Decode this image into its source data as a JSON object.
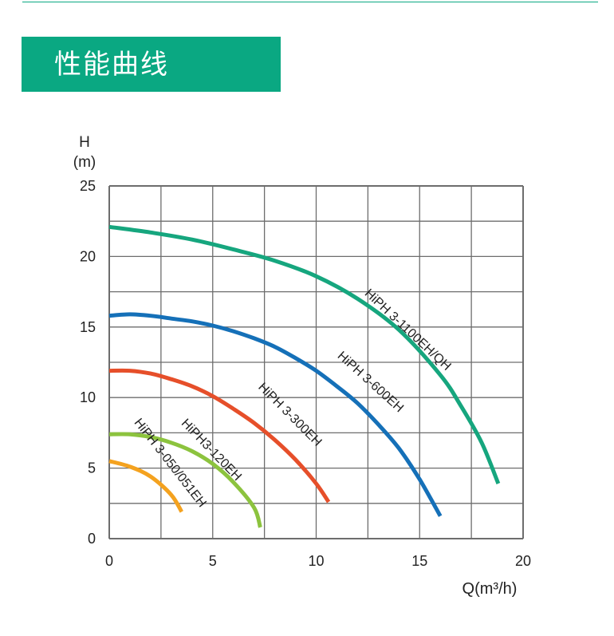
{
  "header": {
    "title": "性能曲线"
  },
  "colors": {
    "brand": "#0aa882",
    "grid": "#6d6d6d",
    "curve_1100": "#16a67e",
    "curve_600": "#1570b8",
    "curve_300": "#e64f2a",
    "curve_120": "#8cc33e",
    "curve_050": "#f4a21f"
  },
  "chart_data": {
    "type": "line",
    "ylabel_line1": "H",
    "ylabel_line2": "(m)",
    "xlabel": "Q(m³/h)",
    "xlim": [
      0,
      20
    ],
    "ylim": [
      0,
      25
    ],
    "grid": true,
    "x_tick_labels": [
      "0",
      "5",
      "10",
      "15",
      "20"
    ],
    "y_tick_labels": [
      "0",
      "5",
      "10",
      "15",
      "20",
      "25"
    ],
    "series": [
      {
        "name": "HiPH 3-1100EH/QH",
        "color": "#16a67e",
        "x": [
          0,
          2,
          4,
          6,
          8,
          10,
          12,
          14,
          16,
          17,
          18,
          18.8
        ],
        "y": [
          22.1,
          21.7,
          21.2,
          20.5,
          19.7,
          18.6,
          17.0,
          14.8,
          11.6,
          9.4,
          6.8,
          3.9
        ]
      },
      {
        "name": "HiPH 3-600EH",
        "color": "#1570b8",
        "x": [
          0,
          1,
          2,
          3,
          4,
          5,
          6,
          7,
          8,
          9,
          10,
          11,
          12,
          13,
          14,
          15,
          16
        ],
        "y": [
          15.8,
          15.9,
          15.8,
          15.6,
          15.4,
          15.1,
          14.7,
          14.2,
          13.6,
          12.8,
          11.9,
          10.8,
          9.6,
          8.1,
          6.4,
          4.2,
          1.6
        ]
      },
      {
        "name": "HiPH 3-300EH",
        "color": "#e64f2a",
        "x": [
          0,
          1,
          2,
          3,
          4,
          5,
          6,
          7,
          8,
          9,
          10,
          10.6
        ],
        "y": [
          11.9,
          11.9,
          11.7,
          11.3,
          10.8,
          10.1,
          9.2,
          8.2,
          7.0,
          5.6,
          3.9,
          2.6
        ]
      },
      {
        "name": "HiPH3-120EH",
        "color": "#8cc33e",
        "x": [
          0,
          1,
          2,
          3,
          4,
          5,
          6,
          7,
          7.3
        ],
        "y": [
          7.4,
          7.4,
          7.2,
          6.8,
          6.2,
          5.3,
          4.0,
          2.2,
          0.8
        ]
      },
      {
        "name": "HiPH 3-050/051EH",
        "color": "#f4a21f",
        "x": [
          0,
          1,
          2,
          3,
          3.5
        ],
        "y": [
          5.5,
          5.1,
          4.4,
          3.1,
          1.9
        ]
      }
    ]
  }
}
